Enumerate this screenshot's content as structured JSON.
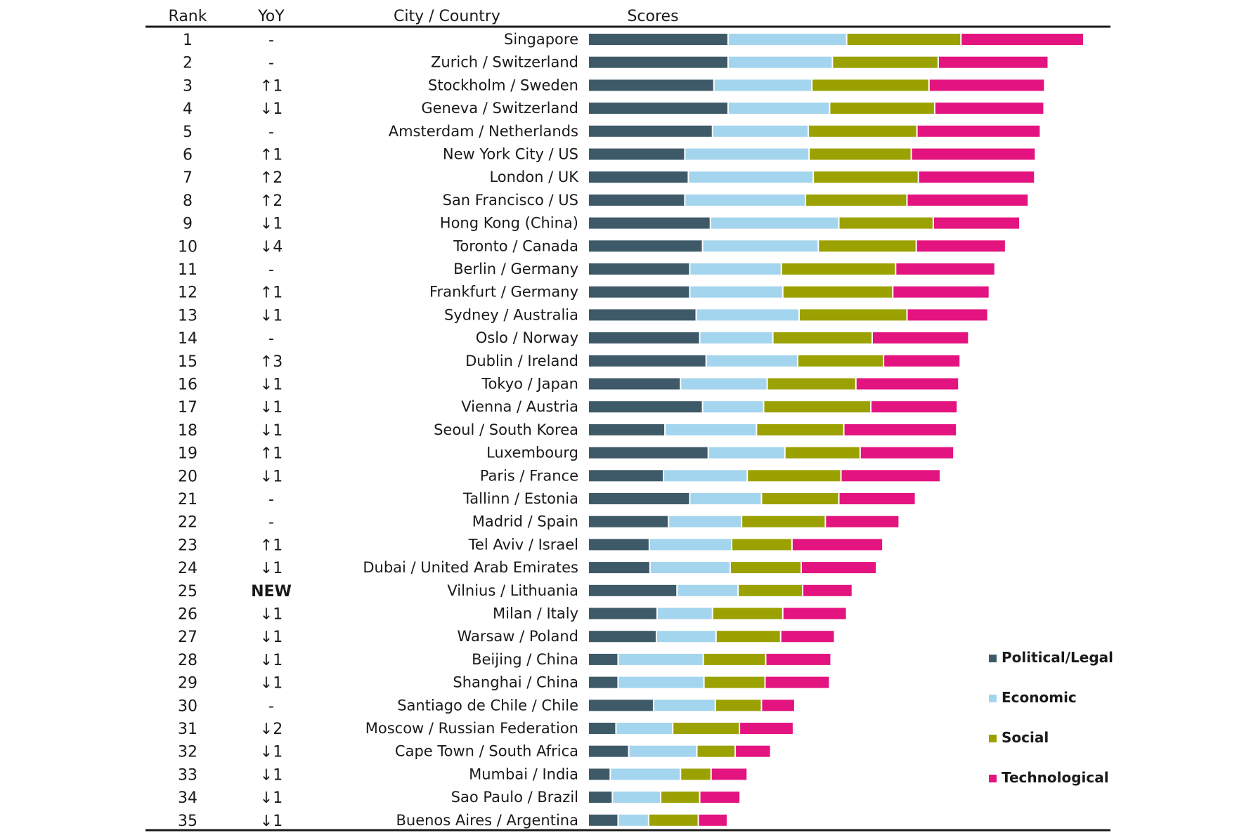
{
  "chart_data": {
    "type": "bar",
    "stacked": true,
    "orientation": "horizontal",
    "columns": {
      "rank": "Rank",
      "yoy": "YoY",
      "city": "City / Country",
      "scores": "Scores"
    },
    "legend_position": "bottom-right",
    "grid": false,
    "series": [
      {
        "name": "Political/Legal",
        "color": "#3E5A68"
      },
      {
        "name": "Economic",
        "color": "#A4D5EE"
      },
      {
        "name": "Social",
        "color": "#9BA100"
      },
      {
        "name": "Technological",
        "color": "#E3147F"
      }
    ],
    "rows": [
      {
        "rank": "1",
        "yoy": "-",
        "city": "Singapore",
        "values": [
          19.7,
          16.7,
          16.1,
          17.3
        ]
      },
      {
        "rank": "2",
        "yoy": "-",
        "city": "Zurich / Switzerland",
        "values": [
          19.7,
          14.7,
          14.9,
          15.5
        ]
      },
      {
        "rank": "3",
        "yoy": "↑1",
        "city": "Stockholm / Sweden",
        "values": [
          17.7,
          13.8,
          16.5,
          16.3
        ]
      },
      {
        "rank": "4",
        "yoy": "↓1",
        "city": "Geneva / Switzerland",
        "values": [
          19.7,
          14.3,
          14.8,
          15.4
        ]
      },
      {
        "rank": "5",
        "yoy": "-",
        "city": "Amsterdam / Netherlands",
        "values": [
          17.5,
          13.5,
          15.3,
          17.4
        ]
      },
      {
        "rank": "6",
        "yoy": "↑1",
        "city": "New York City / US",
        "values": [
          13.6,
          17.5,
          14.4,
          17.5
        ]
      },
      {
        "rank": "7",
        "yoy": "↑2",
        "city": "London / UK",
        "values": [
          14.1,
          17.6,
          14.8,
          16.4
        ]
      },
      {
        "rank": "8",
        "yoy": "↑2",
        "city": "San Francisco / US",
        "values": [
          13.6,
          17.0,
          14.3,
          17.1
        ]
      },
      {
        "rank": "9",
        "yoy": "↓1",
        "city": "Hong Kong (China)",
        "values": [
          17.2,
          18.1,
          13.3,
          12.2
        ]
      },
      {
        "rank": "10",
        "yoy": "↓4",
        "city": "Toronto / Canada",
        "values": [
          16.1,
          16.3,
          13.8,
          12.6
        ]
      },
      {
        "rank": "11",
        "yoy": "-",
        "city": "Berlin / Germany",
        "values": [
          14.3,
          12.9,
          16.1,
          14.0
        ]
      },
      {
        "rank": "12",
        "yoy": "↑1",
        "city": "Frankfurt / Germany",
        "values": [
          14.3,
          13.1,
          15.5,
          13.6
        ]
      },
      {
        "rank": "13",
        "yoy": "↓1",
        "city": "Sydney / Australia",
        "values": [
          15.2,
          14.5,
          15.2,
          11.4
        ]
      },
      {
        "rank": "14",
        "yoy": "-",
        "city": "Oslo / Norway",
        "values": [
          15.7,
          10.3,
          14.0,
          13.6
        ]
      },
      {
        "rank": "15",
        "yoy": "↑3",
        "city": "Dublin / Ireland",
        "values": [
          16.6,
          12.9,
          12.1,
          10.8
        ]
      },
      {
        "rank": "16",
        "yoy": "↓1",
        "city": "Tokyo / Japan",
        "values": [
          13.0,
          12.2,
          12.5,
          14.5
        ]
      },
      {
        "rank": "17",
        "yoy": "↓1",
        "city": "Vienna / Austria",
        "values": [
          16.1,
          8.6,
          15.1,
          12.2
        ]
      },
      {
        "rank": "18",
        "yoy": "↓1",
        "city": "Seoul / South Korea",
        "values": [
          10.8,
          12.9,
          12.3,
          15.9
        ]
      },
      {
        "rank": "19",
        "yoy": "↑1",
        "city": "Luxembourg",
        "values": [
          16.9,
          10.8,
          10.6,
          13.2
        ]
      },
      {
        "rank": "20",
        "yoy": "↓1",
        "city": "Paris / France",
        "values": [
          10.6,
          11.8,
          13.2,
          14.0
        ]
      },
      {
        "rank": "21",
        "yoy": "-",
        "city": "Tallinn / Estonia",
        "values": [
          14.3,
          10.1,
          10.9,
          10.8
        ]
      },
      {
        "rank": "22",
        "yoy": "-",
        "city": "Madrid / Spain",
        "values": [
          11.3,
          10.3,
          11.8,
          10.4
        ]
      },
      {
        "rank": "23",
        "yoy": "↑1",
        "city": "Tel Aviv / Israel",
        "values": [
          8.6,
          11.6,
          8.5,
          12.8
        ]
      },
      {
        "rank": "24",
        "yoy": "↓1",
        "city": "Dubai / United Arab Emirates",
        "values": [
          8.7,
          11.3,
          10.0,
          10.6
        ]
      },
      {
        "rank": "25",
        "yoy": "NEW",
        "city": "Vilnius / Lithuania",
        "values": [
          12.5,
          8.6,
          9.1,
          7.0
        ]
      },
      {
        "rank": "26",
        "yoy": "↓1",
        "city": "Milan / Italy",
        "values": [
          9.7,
          7.8,
          9.9,
          9.0
        ]
      },
      {
        "rank": "27",
        "yoy": "↓1",
        "city": "Warsaw / Poland",
        "values": [
          9.6,
          8.4,
          9.1,
          7.6
        ]
      },
      {
        "rank": "28",
        "yoy": "↓1",
        "city": "Beijing / China",
        "values": [
          4.2,
          12.0,
          8.8,
          9.2
        ]
      },
      {
        "rank": "29",
        "yoy": "↓1",
        "city": "Shanghai / China",
        "values": [
          4.2,
          12.1,
          8.6,
          9.1
        ]
      },
      {
        "rank": "30",
        "yoy": "-",
        "city": "Santiago de Chile / Chile",
        "values": [
          9.2,
          8.7,
          6.5,
          4.7
        ]
      },
      {
        "rank": "31",
        "yoy": "↓2",
        "city": "Moscow / Russian Federation",
        "values": [
          3.9,
          8.0,
          9.4,
          7.6
        ]
      },
      {
        "rank": "32",
        "yoy": "↓1",
        "city": "Cape Town / South Africa",
        "values": [
          5.7,
          9.6,
          5.4,
          5.0
        ]
      },
      {
        "rank": "33",
        "yoy": "↓1",
        "city": "Mumbai / India",
        "values": [
          3.1,
          9.9,
          4.3,
          5.1
        ]
      },
      {
        "rank": "34",
        "yoy": "↓1",
        "city": "Sao Paulo / Brazil",
        "values": [
          3.4,
          6.8,
          5.5,
          5.7
        ]
      },
      {
        "rank": "35",
        "yoy": "↓1",
        "city": "Buenos Aires / Argentina",
        "values": [
          4.2,
          4.3,
          7.0,
          4.1
        ]
      }
    ]
  }
}
